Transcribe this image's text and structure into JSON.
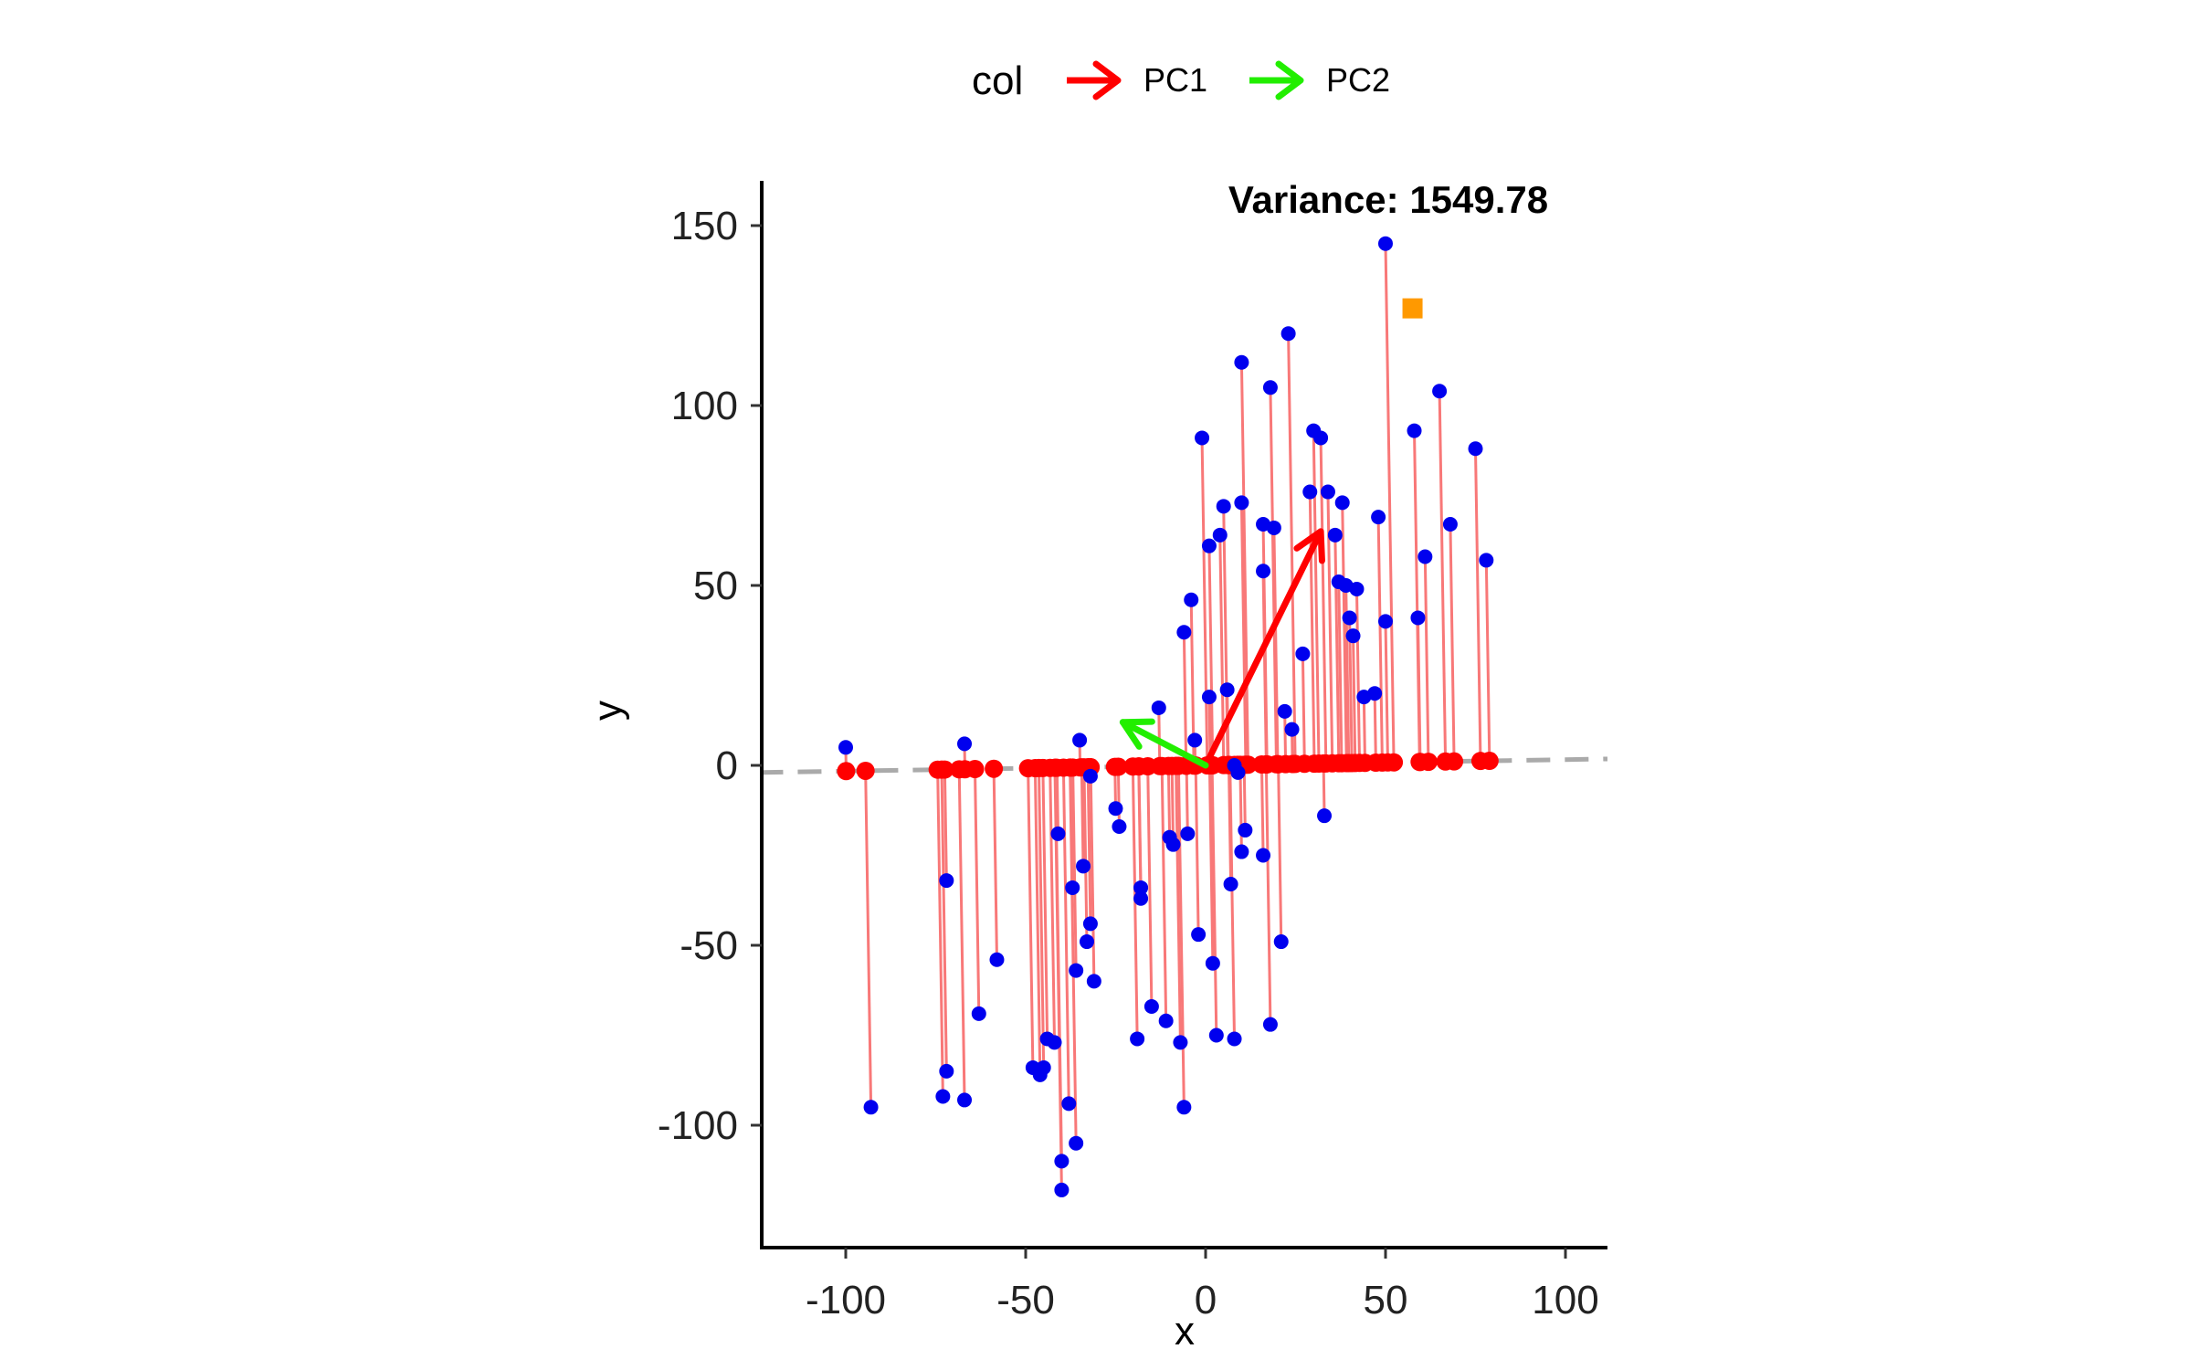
{
  "chart_data": {
    "type": "scatter",
    "title": "",
    "xlabel": "x",
    "ylabel": "y",
    "xlim": [
      -124,
      112
    ],
    "ylim": [
      -134,
      162
    ],
    "x_ticks": [
      -100,
      -50,
      0,
      50,
      100
    ],
    "y_ticks": [
      -100,
      -50,
      0,
      50,
      100,
      150
    ],
    "x_tick_labels": [
      "-100",
      "-50",
      "0",
      "50",
      "100"
    ],
    "y_tick_labels": [
      "-100",
      "-50",
      "0",
      "50",
      "100",
      "150"
    ],
    "grid": false,
    "legend": {
      "title": "col",
      "placement": "top",
      "entries": [
        {
          "label": "PC1",
          "color": "#ff0000"
        },
        {
          "label": "PC2",
          "color": "#00ff00"
        }
      ]
    },
    "annotation": "Variance: 1549.78",
    "colors": {
      "points": "#0000ee",
      "projections": "#ff0000",
      "residual_lines": "#f87878",
      "pc_line": "#aaaaaa",
      "pc1_arrow": "#ff0000",
      "pc2_arrow": "#22ee00",
      "marker": "#ff9900"
    },
    "pc_line": {
      "slope": 0.016,
      "intercept": 0
    },
    "pc1_arrow": {
      "from": [
        0,
        0
      ],
      "to": [
        32,
        65
      ]
    },
    "pc2_arrow": {
      "from": [
        0,
        0
      ],
      "to": [
        -23,
        12
      ]
    },
    "orange_marker": {
      "x": 57.5,
      "y": 127
    },
    "points": [
      {
        "x": -100,
        "y": 5
      },
      {
        "x": -93,
        "y": -95
      },
      {
        "x": -73,
        "y": -92
      },
      {
        "x": -72,
        "y": -85
      },
      {
        "x": -72,
        "y": -32
      },
      {
        "x": -67,
        "y": -93
      },
      {
        "x": -67,
        "y": 6
      },
      {
        "x": -63,
        "y": -69
      },
      {
        "x": -58,
        "y": -54
      },
      {
        "x": -48,
        "y": -84
      },
      {
        "x": -46,
        "y": -86
      },
      {
        "x": -45,
        "y": -84
      },
      {
        "x": -44,
        "y": -76
      },
      {
        "x": -42,
        "y": -77
      },
      {
        "x": -41,
        "y": -19
      },
      {
        "x": -40,
        "y": -110
      },
      {
        "x": -40,
        "y": -118
      },
      {
        "x": -38,
        "y": -94
      },
      {
        "x": -37,
        "y": -34
      },
      {
        "x": -36,
        "y": -57
      },
      {
        "x": -36,
        "y": -105
      },
      {
        "x": -35,
        "y": 7
      },
      {
        "x": -34,
        "y": -28
      },
      {
        "x": -33,
        "y": -49
      },
      {
        "x": -32,
        "y": -44
      },
      {
        "x": -31,
        "y": -60
      },
      {
        "x": -32,
        "y": -3
      },
      {
        "x": -25,
        "y": -12
      },
      {
        "x": -24,
        "y": -17
      },
      {
        "x": -19,
        "y": -76
      },
      {
        "x": -18,
        "y": -34
      },
      {
        "x": -18,
        "y": -37
      },
      {
        "x": -15,
        "y": -67
      },
      {
        "x": -13,
        "y": 16
      },
      {
        "x": -11,
        "y": -71
      },
      {
        "x": -10,
        "y": -20
      },
      {
        "x": -9,
        "y": -22
      },
      {
        "x": -7,
        "y": -77
      },
      {
        "x": -6,
        "y": 37
      },
      {
        "x": -6,
        "y": -95
      },
      {
        "x": -5,
        "y": -19
      },
      {
        "x": -4,
        "y": 46
      },
      {
        "x": -3,
        "y": 7
      },
      {
        "x": -2,
        "y": -47
      },
      {
        "x": -1,
        "y": 91
      },
      {
        "x": 1,
        "y": 61
      },
      {
        "x": 1,
        "y": 19
      },
      {
        "x": 2,
        "y": -55
      },
      {
        "x": 3,
        "y": -75
      },
      {
        "x": 4,
        "y": 64
      },
      {
        "x": 5,
        "y": 72
      },
      {
        "x": 6,
        "y": 21
      },
      {
        "x": 7,
        "y": -33
      },
      {
        "x": 8,
        "y": 0
      },
      {
        "x": 8,
        "y": -76
      },
      {
        "x": 9,
        "y": -2
      },
      {
        "x": 10,
        "y": 112
      },
      {
        "x": 10,
        "y": 73
      },
      {
        "x": 10,
        "y": -24
      },
      {
        "x": 11,
        "y": -18
      },
      {
        "x": 16,
        "y": 67
      },
      {
        "x": 16,
        "y": 54
      },
      {
        "x": 16,
        "y": -25
      },
      {
        "x": 18,
        "y": 105
      },
      {
        "x": 18,
        "y": -72
      },
      {
        "x": 19,
        "y": 66
      },
      {
        "x": 21,
        "y": -49
      },
      {
        "x": 22,
        "y": 15
      },
      {
        "x": 23,
        "y": 120
      },
      {
        "x": 24,
        "y": 10
      },
      {
        "x": 27,
        "y": 31
      },
      {
        "x": 29,
        "y": 76
      },
      {
        "x": 30,
        "y": 93
      },
      {
        "x": 32,
        "y": 91
      },
      {
        "x": 33,
        "y": -14
      },
      {
        "x": 34,
        "y": 76
      },
      {
        "x": 36,
        "y": 64
      },
      {
        "x": 37,
        "y": 51
      },
      {
        "x": 38,
        "y": 73
      },
      {
        "x": 39,
        "y": 50
      },
      {
        "x": 40,
        "y": 41
      },
      {
        "x": 41,
        "y": 36
      },
      {
        "x": 42,
        "y": 49
      },
      {
        "x": 44,
        "y": 19
      },
      {
        "x": 47,
        "y": 20
      },
      {
        "x": 48,
        "y": 69
      },
      {
        "x": 50,
        "y": 145
      },
      {
        "x": 50,
        "y": 40
      },
      {
        "x": 58,
        "y": 93
      },
      {
        "x": 59,
        "y": 41
      },
      {
        "x": 61,
        "y": 58
      },
      {
        "x": 65,
        "y": 104
      },
      {
        "x": 68,
        "y": 67
      },
      {
        "x": 75,
        "y": 88
      },
      {
        "x": 78,
        "y": 57
      }
    ]
  }
}
